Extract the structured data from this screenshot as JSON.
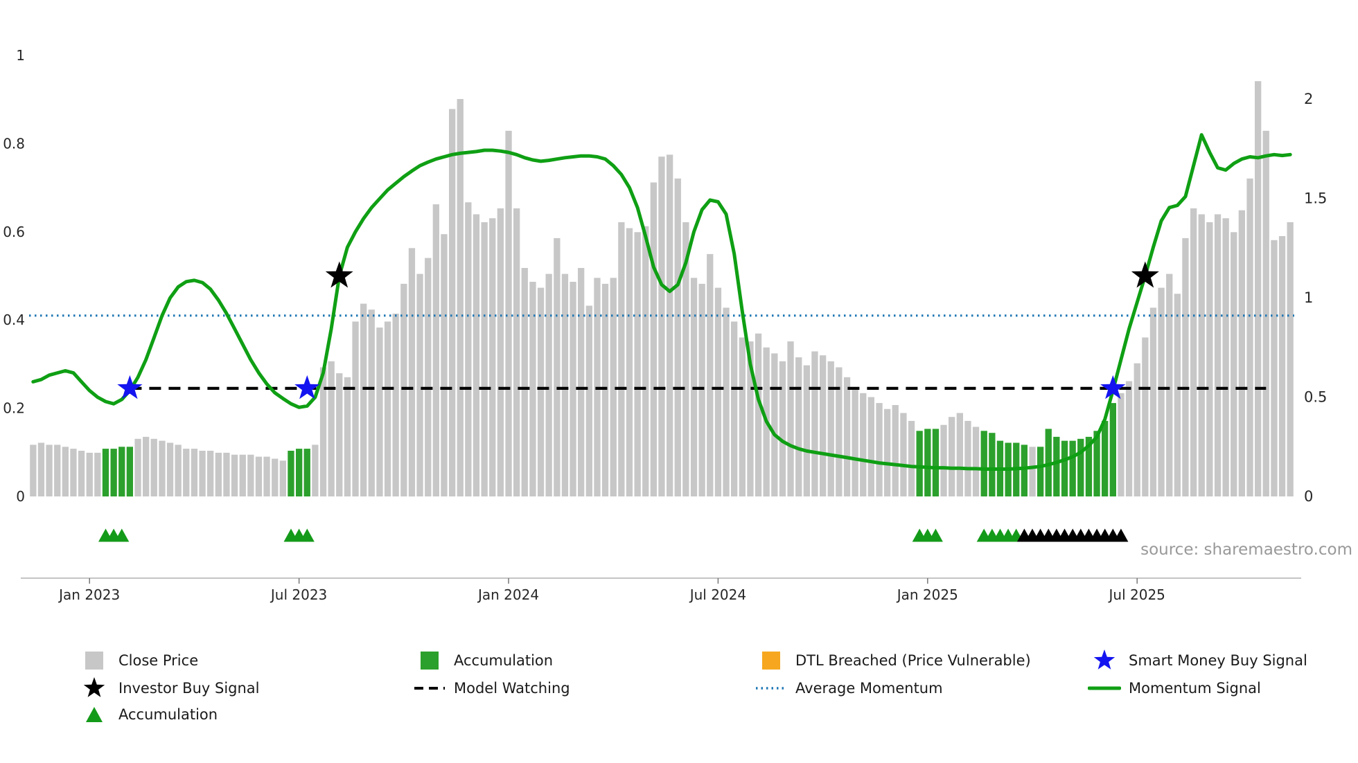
{
  "source_text": "source: sharemaestro.com",
  "colors": {
    "close_price": "#c7c7c7",
    "accumulation_bar": "#2ca02c",
    "momentum_line": "#0f9f14",
    "average_momentum": "#1f77b4",
    "model_watching": "#000000",
    "investor_star": "#000000",
    "smart_money_star": "#1414f0",
    "dtl_breached": "#f6a71f",
    "triangle_green": "#149a19",
    "triangle_black": "#000000",
    "tick_text": "#262626",
    "source_text": "#999999",
    "axis_line": "#b0b0b0"
  },
  "chart_data": {
    "type": "combo",
    "title": "",
    "n_points": 157,
    "x_ticks": [
      {
        "label": "Jan 2023",
        "index": 7
      },
      {
        "label": "Jul 2023",
        "index": 33
      },
      {
        "label": "Jan 2024",
        "index": 59
      },
      {
        "label": "Jul 2024",
        "index": 85
      },
      {
        "label": "Jan 2025",
        "index": 111
      },
      {
        "label": "Jul 2025",
        "index": 137
      }
    ],
    "left_axis": {
      "labels": [
        "1",
        "0.8",
        "0.6",
        "0.4",
        "0.2",
        "0"
      ],
      "values": [
        1,
        0.8,
        0.6,
        0.4,
        0.2,
        0
      ],
      "range": [
        0,
        1
      ]
    },
    "right_axis": {
      "labels": [
        "2",
        "1.5",
        "1",
        "0.5",
        "0"
      ],
      "values": [
        2,
        1.5,
        1,
        0.5,
        0
      ],
      "range": [
        0,
        2
      ]
    },
    "series": [
      {
        "name": "Close Price",
        "type": "bar",
        "axis": "right",
        "values": [
          0.26,
          0.27,
          0.26,
          0.26,
          0.25,
          0.24,
          0.23,
          0.22,
          0.22,
          0.24,
          0.24,
          0.25,
          0.25,
          0.29,
          0.3,
          0.29,
          0.28,
          0.27,
          0.26,
          0.24,
          0.24,
          0.23,
          0.23,
          0.22,
          0.22,
          0.21,
          0.21,
          0.21,
          0.2,
          0.2,
          0.19,
          0.18,
          0.23,
          0.24,
          0.24,
          0.26,
          0.65,
          0.68,
          0.62,
          0.6,
          0.88,
          0.97,
          0.94,
          0.85,
          0.88,
          0.92,
          1.07,
          1.25,
          1.12,
          1.2,
          1.47,
          1.32,
          1.95,
          2.0,
          1.48,
          1.42,
          1.38,
          1.4,
          1.45,
          1.84,
          1.45,
          1.15,
          1.08,
          1.05,
          1.12,
          1.3,
          1.12,
          1.08,
          1.15,
          0.96,
          1.1,
          1.07,
          1.1,
          1.38,
          1.35,
          1.33,
          1.36,
          1.58,
          1.71,
          1.72,
          1.6,
          1.38,
          1.1,
          1.07,
          1.22,
          1.05,
          0.95,
          0.88,
          0.8,
          0.78,
          0.82,
          0.75,
          0.72,
          0.68,
          0.78,
          0.7,
          0.66,
          0.73,
          0.71,
          0.68,
          0.65,
          0.6,
          0.55,
          0.52,
          0.5,
          0.47,
          0.44,
          0.46,
          0.42,
          0.38,
          0.33,
          0.34,
          0.34,
          0.36,
          0.4,
          0.42,
          0.38,
          0.35,
          0.33,
          0.32,
          0.28,
          0.27,
          0.27,
          0.26,
          0.25,
          0.25,
          0.34,
          0.3,
          0.28,
          0.28,
          0.29,
          0.3,
          0.33,
          0.38,
          0.47,
          0.52,
          0.58,
          0.67,
          0.8,
          0.95,
          1.05,
          1.12,
          1.02,
          1.3,
          1.45,
          1.42,
          1.38,
          1.42,
          1.4,
          1.33,
          1.44,
          1.6,
          2.09,
          1.84,
          1.29,
          1.31,
          1.38
        ]
      },
      {
        "name": "Momentum Signal",
        "type": "line",
        "axis": "left",
        "values": [
          0.26,
          0.265,
          0.275,
          0.28,
          0.285,
          0.28,
          0.26,
          0.24,
          0.225,
          0.215,
          0.21,
          0.22,
          0.24,
          0.27,
          0.31,
          0.36,
          0.41,
          0.45,
          0.475,
          0.487,
          0.49,
          0.485,
          0.47,
          0.445,
          0.415,
          0.38,
          0.345,
          0.31,
          0.28,
          0.255,
          0.235,
          0.222,
          0.21,
          0.202,
          0.205,
          0.225,
          0.28,
          0.38,
          0.5,
          0.565,
          0.6,
          0.63,
          0.655,
          0.675,
          0.695,
          0.71,
          0.725,
          0.738,
          0.75,
          0.758,
          0.765,
          0.77,
          0.775,
          0.778,
          0.78,
          0.782,
          0.785,
          0.785,
          0.783,
          0.78,
          0.775,
          0.768,
          0.763,
          0.76,
          0.762,
          0.765,
          0.768,
          0.77,
          0.772,
          0.772,
          0.77,
          0.765,
          0.75,
          0.73,
          0.7,
          0.655,
          0.59,
          0.52,
          0.48,
          0.465,
          0.48,
          0.53,
          0.6,
          0.65,
          0.672,
          0.668,
          0.64,
          0.55,
          0.42,
          0.3,
          0.22,
          0.17,
          0.14,
          0.125,
          0.115,
          0.108,
          0.103,
          0.1,
          0.097,
          0.094,
          0.091,
          0.088,
          0.085,
          0.082,
          0.079,
          0.076,
          0.074,
          0.072,
          0.07,
          0.068,
          0.067,
          0.066,
          0.065,
          0.065,
          0.064,
          0.064,
          0.063,
          0.063,
          0.062,
          0.062,
          0.062,
          0.062,
          0.063,
          0.064,
          0.066,
          0.068,
          0.072,
          0.077,
          0.083,
          0.09,
          0.1,
          0.115,
          0.135,
          0.175,
          0.24,
          0.31,
          0.38,
          0.44,
          0.5,
          0.565,
          0.625,
          0.655,
          0.66,
          0.68,
          0.75,
          0.82,
          0.78,
          0.745,
          0.74,
          0.755,
          0.765,
          0.77,
          0.768,
          0.772,
          0.775,
          0.773,
          0.775
        ]
      }
    ],
    "accumulation_bar_indices": [
      9,
      10,
      11,
      12,
      32,
      33,
      34,
      110,
      111,
      112,
      118,
      119,
      120,
      121,
      122,
      123,
      125,
      126,
      127,
      128,
      129,
      130,
      131,
      132,
      133,
      134
    ],
    "reference_lines": {
      "average_momentum": {
        "value": 0.41,
        "style": "dotted",
        "span": "full"
      },
      "model_watching": {
        "value": 0.245,
        "style": "dashed",
        "start_index": 12,
        "end_index": 153
      }
    },
    "markers": {
      "investor_buy_signals": {
        "indices": [
          38,
          138
        ],
        "momentum_value": 0.5
      },
      "smart_money_buy_signals": {
        "indices": [
          12,
          34,
          134
        ],
        "momentum_value": 0.245
      },
      "accumulation_triangle_indices": [
        9,
        10,
        11,
        32,
        33,
        34,
        110,
        111,
        112,
        118,
        119,
        120,
        121,
        122
      ],
      "black_triangle_indices": [
        123,
        124,
        125,
        126,
        127,
        128,
        129,
        130,
        131,
        132,
        133,
        134,
        135
      ]
    },
    "legend_position": "bottom"
  },
  "legend": {
    "items": [
      {
        "label": "Close Price",
        "marker": "square",
        "color_key": "close_price"
      },
      {
        "label": "Investor Buy Signal",
        "marker": "star",
        "color_key": "investor_star"
      },
      {
        "label": "Accumulation",
        "marker": "triangle",
        "color_key": "triangle_green"
      },
      {
        "label": "Accumulation",
        "marker": "square",
        "color_key": "accumulation_bar"
      },
      {
        "label": "Model Watching",
        "marker": "dashed-line",
        "color_key": "model_watching"
      },
      {
        "label": "DTL Breached (Price Vulnerable)",
        "marker": "square",
        "color_key": "dtl_breached"
      },
      {
        "label": "Average Momentum",
        "marker": "dotted-line",
        "color_key": "average_momentum"
      },
      {
        "label": "Smart Money Buy Signal",
        "marker": "star",
        "color_key": "smart_money_star"
      },
      {
        "label": "Momentum Signal",
        "marker": "line",
        "color_key": "momentum_line"
      }
    ]
  }
}
